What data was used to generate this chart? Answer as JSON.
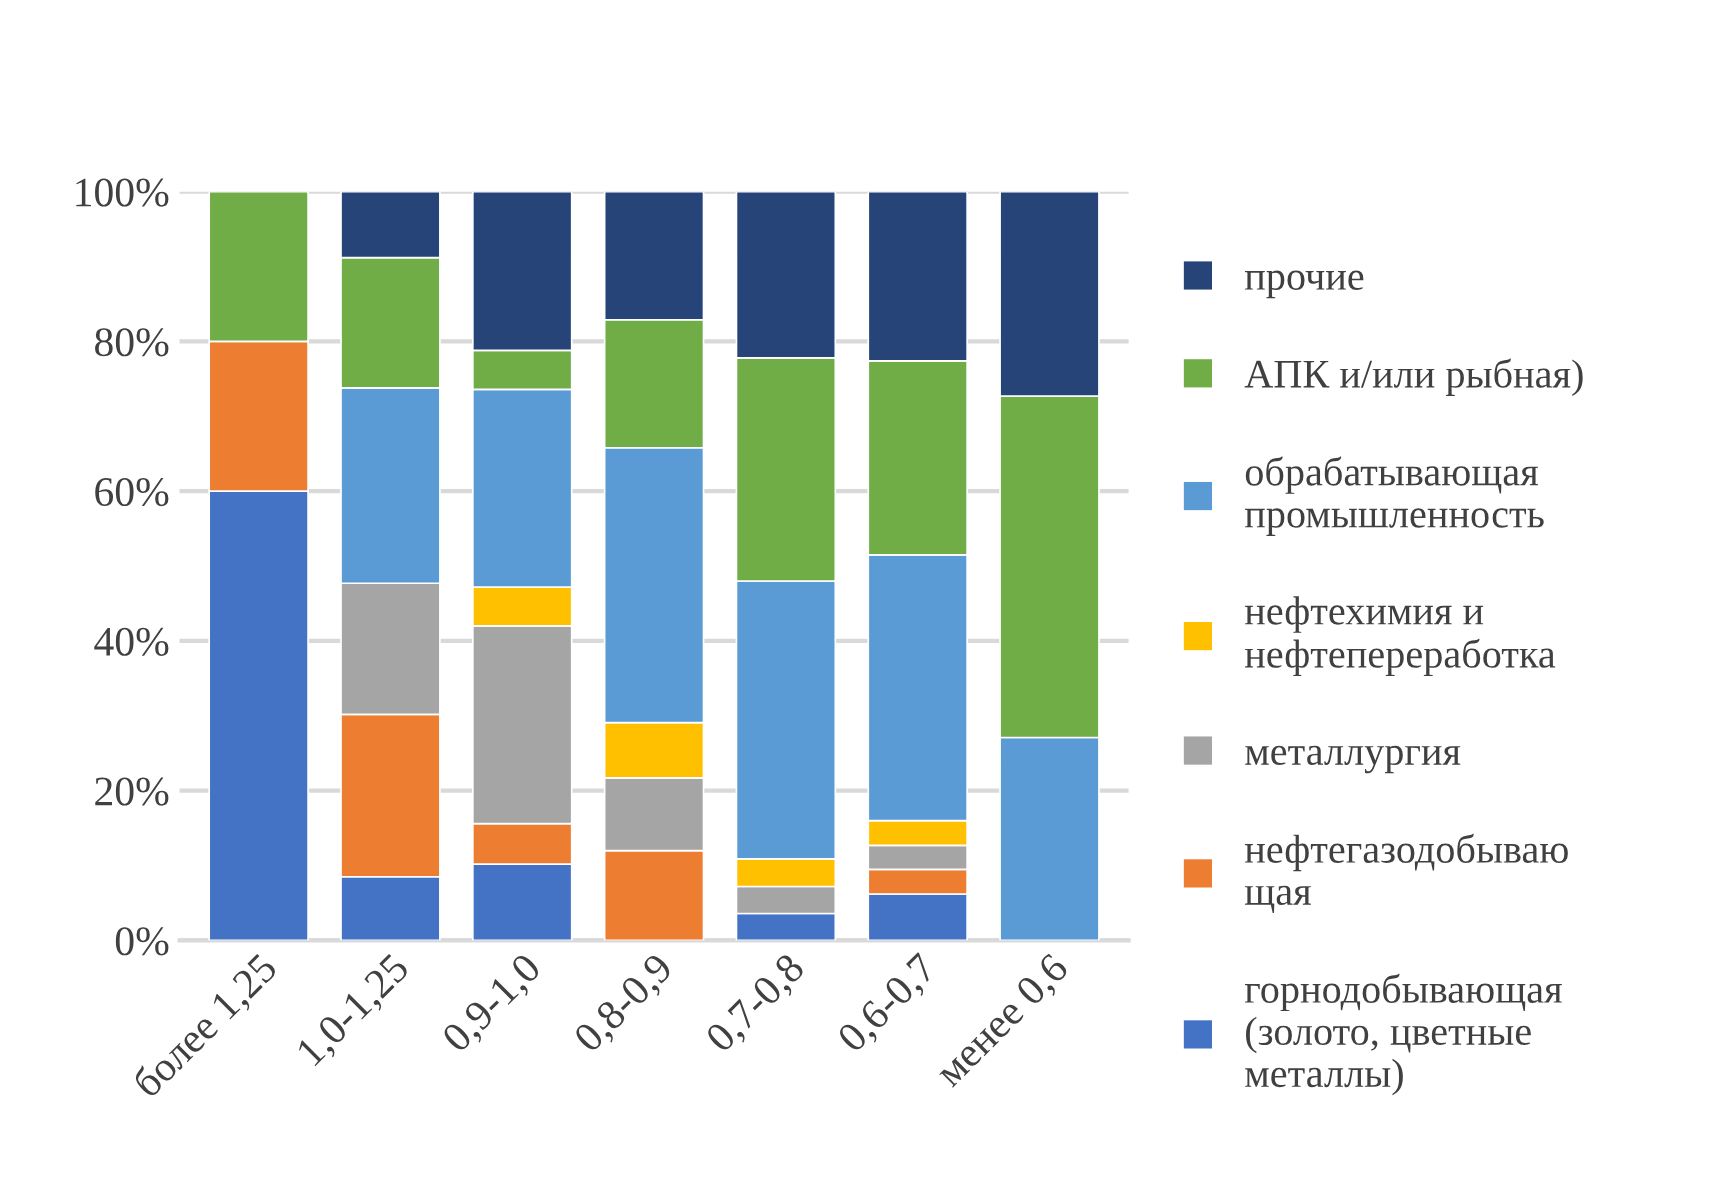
{
  "chart_data": {
    "type": "bar",
    "stacked": true,
    "categories": [
      "более 1,25",
      "1,0-1,25",
      "0,9-1,0",
      "0,8-0,9",
      "0,7-0,8",
      "0,6-0,7",
      "менее 0,6"
    ],
    "series": [
      {
        "name": "горнодобывающая\n(золото, цветные\nметаллы)",
        "color": "#4472c4",
        "values": [
          60,
          8.5,
          10.2,
          null,
          3.6,
          6.2,
          null
        ]
      },
      {
        "name": "нефтегазодобываю\nщая",
        "color": "#ed7d31",
        "values": [
          20,
          21.7,
          5.4,
          12.0,
          null,
          3.3,
          null
        ]
      },
      {
        "name": "металлургия",
        "color": "#a5a5a5",
        "values": [
          null,
          17.5,
          26.4,
          9.7,
          3.6,
          3.2,
          null
        ]
      },
      {
        "name": "нефтехимия и\nнефтепереработка",
        "color": "#ffc000",
        "values": [
          null,
          null,
          5.2,
          7.4,
          3.7,
          3.3,
          null
        ]
      },
      {
        "name": "обрабатывающая\nпромышленность",
        "color": "#5b9bd5",
        "values": [
          null,
          26.1,
          26.4,
          36.7,
          37.1,
          35.5,
          27.1
        ]
      },
      {
        "name": "АПК и/или рыбная)",
        "color": "#70ad47",
        "values": [
          20,
          17.4,
          5.2,
          17.1,
          29.8,
          25.9,
          45.6
        ]
      },
      {
        "name": "прочие",
        "color": "#264478",
        "values": [
          null,
          8.8,
          21.2,
          17.1,
          22.2,
          22.6,
          27.3
        ]
      }
    ],
    "ylim": [
      0,
      100
    ],
    "yticks": [
      {
        "value": 0,
        "label": "0%"
      },
      {
        "value": 20,
        "label": "20%"
      },
      {
        "value": 40,
        "label": "40%"
      },
      {
        "value": 60,
        "label": "60%"
      },
      {
        "value": 80,
        "label": "80%"
      },
      {
        "value": 100,
        "label": "100%"
      }
    ],
    "grid": "y",
    "legend": "right"
  }
}
